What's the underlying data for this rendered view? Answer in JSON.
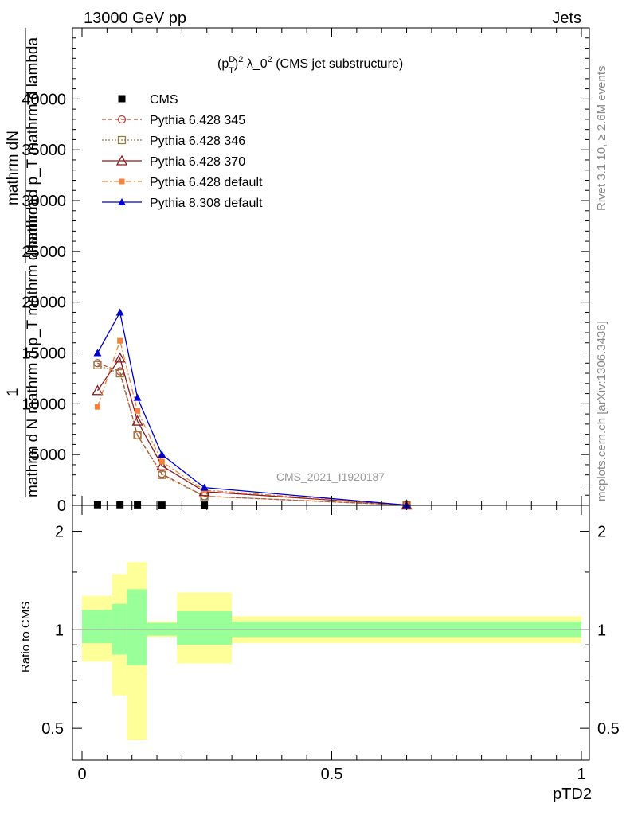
{
  "header": {
    "left": "13000 GeV pp",
    "right": "Jets"
  },
  "side_text": {
    "rivet": "Rivet 3.1.10, ≥ 2.6M events",
    "site": "mcplots.cern.ch [arXiv:1306.3436]"
  },
  "watermark": "CMS_2021_I1920187",
  "colors": {
    "cms": "#000000",
    "p345": "#b7473c",
    "p346": "#9a7a3a",
    "p370": "#8b1a1a",
    "p6def": "#f5813b",
    "p8def": "#0000cc",
    "band_outer": "#ffff99",
    "band_inner": "#99ff99"
  },
  "chart_data": {
    "type": "line",
    "title_parts": {
      "p": "(p",
      "sup1": "D",
      "sub1": "T",
      "sup2": "2",
      "rest": " λ_0",
      "sup3": "2",
      "tail": " (CMS jet substructure)"
    },
    "ylabel_main_top": "mathrm dN",
    "ylabel_main_den": "mathrm d p_T mathrm d lambda",
    "ylabel_main_one": "1",
    "ylabel_main_den2": "mathrm d N",
    "ylabel_main_mid": "mathrm d p_T mathrm d lambda",
    "ylabel_ratio": "Ratio to CMS",
    "xlabel": "pTD2",
    "xlim": [
      0,
      1
    ],
    "ylim_main": [
      0,
      47000
    ],
    "ylim_ratio": [
      0.4,
      2.4
    ],
    "main_ticks": [
      "0",
      "5000",
      "10000",
      "15000",
      "20000",
      "25000",
      "30000",
      "35000",
      "40000"
    ],
    "ratio_ticks": [
      "0.5",
      "1",
      "2"
    ],
    "x_ticks": [
      "0",
      "0.5",
      "1"
    ],
    "x": [
      0.031,
      0.076,
      0.111,
      0.16,
      0.245,
      0.65
    ],
    "series": [
      {
        "name": "CMS",
        "values": [
          60,
          60,
          50,
          30,
          30,
          5
        ]
      },
      {
        "name": "Pythia 6.428 345",
        "values": [
          14000,
          13200,
          6900,
          3100,
          900,
          20
        ]
      },
      {
        "name": "Pythia 6.428 346",
        "values": [
          13800,
          13000,
          6900,
          3000,
          900,
          20
        ]
      },
      {
        "name": "Pythia 6.428 370",
        "values": [
          11300,
          14500,
          8300,
          3900,
          1350,
          30
        ]
      },
      {
        "name": "Pythia 6.428 default",
        "values": [
          9700,
          16200,
          9300,
          4300,
          1500,
          30
        ]
      },
      {
        "name": "Pythia 8.308 default",
        "values": [
          15000,
          19000,
          10600,
          5000,
          1750,
          30
        ]
      }
    ],
    "ratio_bands": [
      {
        "x0": 0.0,
        "x1": 0.06,
        "inner": [
          0.91,
          1.15
        ],
        "outer": [
          0.8,
          1.27
        ]
      },
      {
        "x0": 0.06,
        "x1": 0.09,
        "inner": [
          0.84,
          1.2
        ],
        "outer": [
          0.63,
          1.48
        ]
      },
      {
        "x0": 0.09,
        "x1": 0.13,
        "inner": [
          0.78,
          1.33
        ],
        "outer": [
          0.46,
          1.61
        ]
      },
      {
        "x0": 0.13,
        "x1": 0.19,
        "inner": [
          0.96,
          1.05
        ],
        "outer": [
          0.95,
          1.06
        ]
      },
      {
        "x0": 0.19,
        "x1": 0.3,
        "inner": [
          0.9,
          1.14
        ],
        "outer": [
          0.79,
          1.3
        ]
      },
      {
        "x0": 0.3,
        "x1": 1.0,
        "inner": [
          0.95,
          1.06
        ],
        "outer": [
          0.91,
          1.1
        ]
      }
    ],
    "grid": false,
    "legend_placement": "top-left"
  }
}
